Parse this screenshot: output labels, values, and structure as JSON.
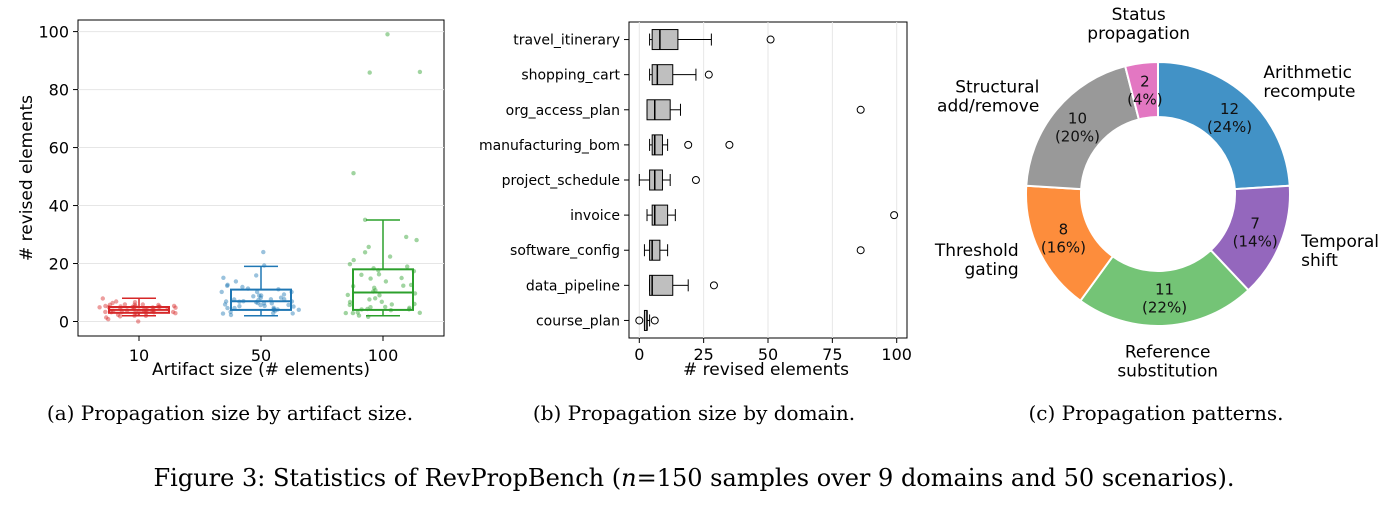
{
  "figure": {
    "caption": "Figure 3: Statistics of RevPropBench (n=150 samples over 9 domains and 50 scenarios).",
    "caption_prefix": "Figure 3: Statistics of RevPropBench (",
    "caption_n": "n",
    "caption_eq": "=150 samples over ",
    "caption_nine": "9",
    "caption_mid": " domains and ",
    "caption_fifty": "50",
    "caption_suffix": " scenarios)."
  },
  "chart_data": [
    {
      "type": "box",
      "caption": "(a) Propagation size by artifact size.",
      "xlabel": "Artifact size (# elements)",
      "ylabel": "# revised elements",
      "ylim": [
        -5,
        104
      ],
      "yticks": [
        0,
        20,
        40,
        60,
        80,
        100
      ],
      "grid": true,
      "categories": [
        "10",
        "50",
        "100"
      ],
      "colors": [
        "#d62728",
        "#1f77b4",
        "#2ca02c"
      ],
      "boxes": [
        {
          "min": 2,
          "q1": 3,
          "median": 4,
          "q3": 5,
          "max": 8,
          "outliers": []
        },
        {
          "min": 2,
          "q1": 4,
          "median": 7,
          "q3": 11,
          "max": 19,
          "outliers": []
        },
        {
          "min": 2,
          "q1": 4,
          "median": 10,
          "q3": 18,
          "max": 35,
          "outliers": []
        }
      ],
      "points": [
        [
          0,
          1,
          2,
          3,
          3,
          3,
          4,
          4,
          4,
          4,
          4,
          5,
          5,
          5,
          5,
          5,
          6,
          6,
          6,
          3,
          4,
          5,
          2,
          3,
          4,
          5,
          6,
          7,
          8,
          4,
          3,
          5,
          4,
          3,
          2,
          6,
          5,
          4,
          3,
          5,
          4,
          6,
          7,
          3,
          4,
          5,
          2,
          1,
          5,
          4
        ],
        [
          2,
          3,
          3,
          4,
          4,
          5,
          5,
          5,
          6,
          6,
          6,
          7,
          7,
          7,
          8,
          8,
          8,
          9,
          9,
          10,
          10,
          11,
          11,
          12,
          12,
          13,
          14,
          15,
          16,
          19,
          24,
          3,
          4,
          5,
          6,
          7,
          8,
          9,
          5,
          6,
          7,
          4,
          3,
          8,
          9,
          10,
          6,
          7,
          5,
          4
        ],
        [
          2,
          2,
          3,
          3,
          3,
          4,
          4,
          4,
          5,
          5,
          6,
          6,
          7,
          8,
          8,
          9,
          9,
          10,
          11,
          12,
          12,
          13,
          14,
          15,
          15,
          16,
          17,
          18,
          19,
          20,
          21,
          22,
          24,
          26,
          28,
          29,
          35,
          51,
          86,
          86,
          99,
          3,
          4,
          5,
          6,
          7,
          10,
          12,
          16,
          18
        ]
      ]
    },
    {
      "type": "box",
      "orientation": "horizontal",
      "caption": "(b) Propagation size by domain.",
      "xlabel": "# revised elements",
      "xlim": [
        -4,
        104
      ],
      "xticks": [
        0,
        25,
        50,
        75,
        100
      ],
      "grid": true,
      "color": "#bfbfbf",
      "categories": [
        "travel_itinerary",
        "shopping_cart",
        "org_access_plan",
        "manufacturing_bom",
        "project_schedule",
        "invoice",
        "software_config",
        "data_pipeline",
        "course_plan"
      ],
      "boxes": [
        {
          "min": 4,
          "q1": 5,
          "median": 8,
          "q3": 15,
          "max": 28,
          "outliers": [
            51
          ]
        },
        {
          "min": 4,
          "q1": 5,
          "median": 7,
          "q3": 13,
          "max": 22,
          "outliers": [
            27
          ]
        },
        {
          "min": 3,
          "q1": 3,
          "median": 6,
          "q3": 12,
          "max": 16,
          "outliers": [
            86
          ]
        },
        {
          "min": 4,
          "q1": 5,
          "median": 6,
          "q3": 9,
          "max": 11,
          "outliers": [
            19,
            35
          ]
        },
        {
          "min": 0,
          "q1": 4,
          "median": 6,
          "q3": 9,
          "max": 12,
          "outliers": [
            22
          ]
        },
        {
          "min": 3,
          "q1": 5,
          "median": 6,
          "q3": 11,
          "max": 14,
          "outliers": [
            99
          ]
        },
        {
          "min": 2,
          "q1": 4,
          "median": 5,
          "q3": 8,
          "max": 11,
          "outliers": [
            86
          ]
        },
        {
          "min": 4,
          "q1": 4,
          "median": 5,
          "q3": 13,
          "max": 19,
          "outliers": [
            29
          ]
        },
        {
          "min": 2,
          "q1": 2,
          "median": 3,
          "q3": 3,
          "max": 4,
          "outliers": [
            0,
            6
          ]
        }
      ]
    },
    {
      "type": "pie",
      "variant": "donut",
      "caption": "(c) Propagation patterns.",
      "slices": [
        {
          "label": "Arithmetic recompute",
          "label_lines": [
            "Arithmetic",
            "recompute"
          ],
          "value": 12,
          "pct": "(24%)",
          "color": "#4292c6",
          "text_color": "#111111"
        },
        {
          "label": "Temporal shift",
          "label_lines": [
            "Temporal",
            "shift"
          ],
          "value": 7,
          "pct": "(14%)",
          "color": "#9467bd",
          "text_color": "#111111"
        },
        {
          "label": "Reference substitution",
          "label_lines": [
            "Reference",
            "substitution"
          ],
          "value": 11,
          "pct": "(22%)",
          "color": "#74c476",
          "text_color": "#111111"
        },
        {
          "label": "Threshold gating",
          "label_lines": [
            "Threshold",
            "gating"
          ],
          "value": 8,
          "pct": "(16%)",
          "color": "#fd8d3c",
          "text_color": "#111111"
        },
        {
          "label": "Structural add/remove",
          "label_lines": [
            "Structural",
            "add/remove"
          ],
          "value": 10,
          "pct": "(20%)",
          "color": "#999999",
          "text_color": "#111111"
        },
        {
          "label": "Status propagation",
          "label_lines": [
            "Status",
            "propagation"
          ],
          "value": 2,
          "pct": "(4%)",
          "color": "#e377c2",
          "text_color": "#111111"
        }
      ]
    }
  ]
}
